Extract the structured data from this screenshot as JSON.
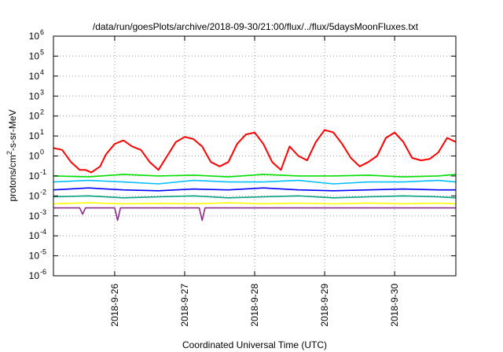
{
  "chart_data": {
    "type": "line",
    "title": "/data/run/goesPlots/archive/2018-09-30/21:00/flux/../flux/5daysMoonFluxes.txt",
    "xlabel": "Coordinated Universal Time (UTC)",
    "ylabel_parts": [
      "protons/cm",
      "2",
      "-s-sr-MeV"
    ],
    "y_scale": "log",
    "ylim": [
      1e-06,
      1000000.0
    ],
    "y_ticks": [
      {
        "base": "10",
        "exp": "-6",
        "value": 1e-06
      },
      {
        "base": "10",
        "exp": "-5",
        "value": 1e-05
      },
      {
        "base": "10",
        "exp": "-4",
        "value": 0.0001
      },
      {
        "base": "10",
        "exp": "-3",
        "value": 0.001
      },
      {
        "base": "10",
        "exp": "-2",
        "value": 0.01
      },
      {
        "base": "10",
        "exp": "-1",
        "value": 0.1
      },
      {
        "base": "10",
        "exp": "0",
        "value": 1
      },
      {
        "base": "10",
        "exp": "1",
        "value": 10
      },
      {
        "base": "10",
        "exp": "2",
        "value": 100
      },
      {
        "base": "10",
        "exp": "3",
        "value": 1000
      },
      {
        "base": "10",
        "exp": "4",
        "value": 10000
      },
      {
        "base": "10",
        "exp": "5",
        "value": 100000
      },
      {
        "base": "10",
        "exp": "6",
        "value": 1000000
      }
    ],
    "x_unit": "days",
    "xlim": [
      "2018-09-25 03:00",
      "2018-09-30 21:00"
    ],
    "x_ticks": [
      "2018-9-26",
      "2018-9-27",
      "2018-9-28",
      "2018-9-29",
      "2018-9-30"
    ],
    "grid": true,
    "legend": "none",
    "series": [
      {
        "color": "#ff0000",
        "x": [
          "2018-09-25 03:00",
          "2018-09-25 06:00",
          "2018-09-25 09:00",
          "2018-09-25 12:00",
          "2018-09-25 14:00",
          "2018-09-25 16:00",
          "2018-09-25 19:00",
          "2018-09-25 21:00",
          "2018-09-26 00:00",
          "2018-09-26 03:00",
          "2018-09-26 06:00",
          "2018-09-26 09:00",
          "2018-09-26 12:00",
          "2018-09-26 15:00",
          "2018-09-26 18:00",
          "2018-09-26 21:00",
          "2018-09-27 00:00",
          "2018-09-27 03:00",
          "2018-09-27 06:00",
          "2018-09-27 09:00",
          "2018-09-27 12:00",
          "2018-09-27 15:00",
          "2018-09-27 18:00",
          "2018-09-27 21:00",
          "2018-09-28 00:00",
          "2018-09-28 03:00",
          "2018-09-28 06:00",
          "2018-09-28 09:00",
          "2018-09-28 12:00",
          "2018-09-28 15:00",
          "2018-09-28 18:00",
          "2018-09-28 21:00",
          "2018-09-29 00:00",
          "2018-09-29 03:00",
          "2018-09-29 06:00",
          "2018-09-29 09:00",
          "2018-09-29 12:00",
          "2018-09-29 15:00",
          "2018-09-29 18:00",
          "2018-09-29 21:00",
          "2018-09-30 00:00",
          "2018-09-30 03:00",
          "2018-09-30 06:00",
          "2018-09-30 09:00",
          "2018-09-30 12:00",
          "2018-09-30 15:00",
          "2018-09-30 18:00",
          "2018-09-30 21:00"
        ],
        "values": [
          2.5,
          2,
          0.5,
          0.2,
          0.2,
          0.15,
          0.3,
          1.2,
          4,
          6,
          3,
          2,
          0.5,
          0.2,
          1,
          5,
          9,
          7,
          3,
          0.5,
          0.3,
          0.5,
          4,
          12,
          15,
          4,
          0.5,
          0.2,
          3,
          1,
          0.6,
          5,
          20,
          15,
          4,
          0.8,
          0.3,
          0.5,
          1,
          8,
          15,
          5,
          0.8,
          0.6,
          0.7,
          1.5,
          8,
          5
        ]
      },
      {
        "color": "#00e000",
        "x": [
          "2018-09-25 03:00",
          "2018-09-25 15:00",
          "2018-09-26 03:00",
          "2018-09-26 15:00",
          "2018-09-27 03:00",
          "2018-09-27 15:00",
          "2018-09-28 03:00",
          "2018-09-28 15:00",
          "2018-09-29 03:00",
          "2018-09-29 15:00",
          "2018-09-30 03:00",
          "2018-09-30 15:00",
          "2018-09-30 21:00"
        ],
        "values": [
          0.1,
          0.09,
          0.12,
          0.1,
          0.11,
          0.09,
          0.12,
          0.1,
          0.1,
          0.11,
          0.09,
          0.1,
          0.12
        ]
      },
      {
        "color": "#00bfff",
        "x": [
          "2018-09-25 03:00",
          "2018-09-25 15:00",
          "2018-09-26 03:00",
          "2018-09-26 15:00",
          "2018-09-27 03:00",
          "2018-09-27 15:00",
          "2018-09-28 03:00",
          "2018-09-28 15:00",
          "2018-09-29 03:00",
          "2018-09-29 15:00",
          "2018-09-30 03:00",
          "2018-09-30 15:00",
          "2018-09-30 21:00"
        ],
        "values": [
          0.05,
          0.06,
          0.05,
          0.04,
          0.06,
          0.05,
          0.05,
          0.06,
          0.04,
          0.05,
          0.05,
          0.06,
          0.05
        ]
      },
      {
        "color": "#0000ff",
        "x": [
          "2018-09-25 03:00",
          "2018-09-25 15:00",
          "2018-09-26 03:00",
          "2018-09-26 15:00",
          "2018-09-27 03:00",
          "2018-09-27 15:00",
          "2018-09-28 03:00",
          "2018-09-28 15:00",
          "2018-09-29 03:00",
          "2018-09-29 15:00",
          "2018-09-30 03:00",
          "2018-09-30 15:00",
          "2018-09-30 21:00"
        ],
        "values": [
          0.02,
          0.025,
          0.02,
          0.018,
          0.022,
          0.02,
          0.025,
          0.02,
          0.018,
          0.02,
          0.022,
          0.02,
          0.02
        ]
      },
      {
        "color": "#00a080",
        "x": [
          "2018-09-25 03:00",
          "2018-09-25 15:00",
          "2018-09-26 03:00",
          "2018-09-26 15:00",
          "2018-09-27 03:00",
          "2018-09-27 15:00",
          "2018-09-28 03:00",
          "2018-09-28 15:00",
          "2018-09-29 03:00",
          "2018-09-29 15:00",
          "2018-09-30 03:00",
          "2018-09-30 15:00",
          "2018-09-30 21:00"
        ],
        "values": [
          0.009,
          0.01,
          0.008,
          0.009,
          0.01,
          0.008,
          0.009,
          0.01,
          0.008,
          0.009,
          0.01,
          0.009,
          0.008
        ]
      },
      {
        "color": "#ffff00",
        "x": [
          "2018-09-25 03:00",
          "2018-09-25 15:00",
          "2018-09-26 03:00",
          "2018-09-26 15:00",
          "2018-09-27 03:00",
          "2018-09-27 15:00",
          "2018-09-28 03:00",
          "2018-09-28 15:00",
          "2018-09-29 03:00",
          "2018-09-29 15:00",
          "2018-09-30 03:00",
          "2018-09-30 15:00",
          "2018-09-30 21:00"
        ],
        "values": [
          0.004,
          0.0045,
          0.004,
          0.0042,
          0.004,
          0.0045,
          0.004,
          0.0043,
          0.004,
          0.0044,
          0.004,
          0.0043,
          0.004
        ]
      },
      {
        "color": "#8b2a8b",
        "x": [
          "2018-09-25 03:00",
          "2018-09-25 12:00",
          "2018-09-25 13:00",
          "2018-09-25 14:00",
          "2018-09-26 00:00",
          "2018-09-26 01:00",
          "2018-09-26 02:00",
          "2018-09-26 15:00",
          "2018-09-27 03:00",
          "2018-09-27 05:00",
          "2018-09-27 06:00",
          "2018-09-27 07:00",
          "2018-09-27 18:00",
          "2018-09-28 03:00",
          "2018-09-28 15:00",
          "2018-09-29 03:00",
          "2018-09-29 15:00",
          "2018-09-30 03:00",
          "2018-09-30 15:00",
          "2018-09-30 21:00"
        ],
        "values": [
          0.0025,
          0.0025,
          0.0012,
          0.0025,
          0.0025,
          0.0006,
          0.0025,
          0.0025,
          0.0025,
          0.0025,
          0.0006,
          0.0025,
          0.0025,
          0.0025,
          0.0025,
          0.0025,
          0.0025,
          0.0025,
          0.0025,
          0.0025
        ]
      }
    ]
  }
}
